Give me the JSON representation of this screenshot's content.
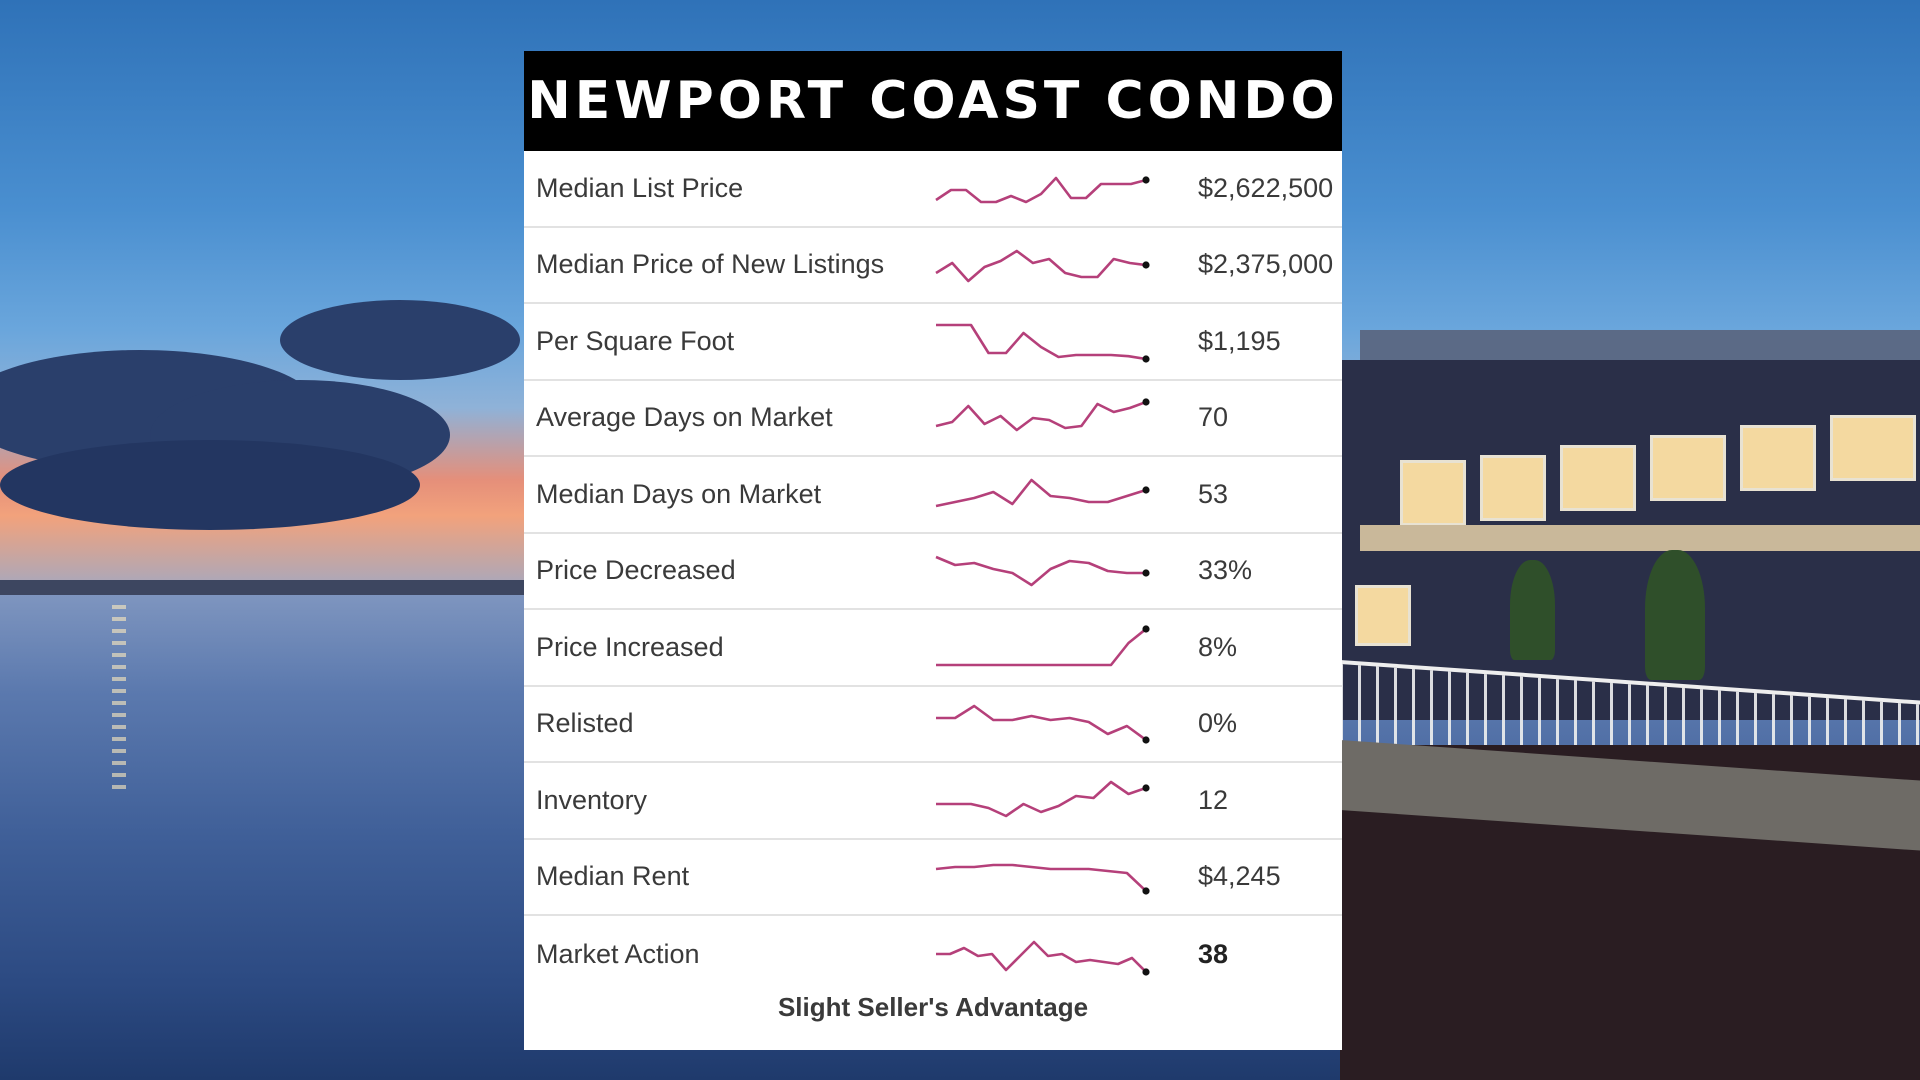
{
  "title": "NEWPORT COAST CONDO",
  "accent_color": "#b5407a",
  "rows": [
    {
      "label": "Median List Price",
      "value": "$2,622,500",
      "bold": false,
      "trend": [
        0.2,
        0.45,
        0.45,
        0.15,
        0.15,
        0.3,
        0.15,
        0.35,
        0.75,
        0.25,
        0.25,
        0.6,
        0.6,
        0.6,
        0.7
      ]
    },
    {
      "label": "Median Price of New Listings",
      "value": "$2,375,000",
      "bold": false,
      "trend": [
        0.3,
        0.55,
        0.1,
        0.45,
        0.6,
        0.85,
        0.55,
        0.65,
        0.3,
        0.2,
        0.2,
        0.65,
        0.55,
        0.5
      ]
    },
    {
      "label": "Per Square Foot",
      "value": "$1,195",
      "bold": false,
      "trend": [
        0.9,
        0.9,
        0.9,
        0.2,
        0.2,
        0.7,
        0.35,
        0.1,
        0.15,
        0.15,
        0.15,
        0.12,
        0.05
      ]
    },
    {
      "label": "Average Days on Market",
      "value": "70",
      "bold": false,
      "trend": [
        0.3,
        0.4,
        0.8,
        0.35,
        0.55,
        0.2,
        0.5,
        0.45,
        0.25,
        0.3,
        0.85,
        0.65,
        0.75,
        0.9
      ]
    },
    {
      "label": "Median Days on Market",
      "value": "53",
      "bold": false,
      "trend": [
        0.2,
        0.3,
        0.4,
        0.55,
        0.25,
        0.85,
        0.45,
        0.4,
        0.3,
        0.3,
        0.45,
        0.6
      ]
    },
    {
      "label": "Price Decreased",
      "value": "33%",
      "bold": false,
      "trend": [
        0.85,
        0.65,
        0.7,
        0.55,
        0.45,
        0.15,
        0.55,
        0.75,
        0.7,
        0.5,
        0.45,
        0.45
      ]
    },
    {
      "label": "Price Increased",
      "value": "8%",
      "bold": false,
      "trend": [
        0.05,
        0.05,
        0.05,
        0.05,
        0.05,
        0.05,
        0.05,
        0.05,
        0.05,
        0.05,
        0.05,
        0.6,
        0.95
      ]
    },
    {
      "label": "Relisted",
      "value": "0%",
      "bold": false,
      "trend": [
        0.65,
        0.65,
        0.95,
        0.6,
        0.6,
        0.7,
        0.6,
        0.65,
        0.55,
        0.25,
        0.45,
        0.1
      ]
    },
    {
      "label": "Inventory",
      "value": "12",
      "bold": false,
      "trend": [
        0.4,
        0.4,
        0.4,
        0.3,
        0.1,
        0.4,
        0.2,
        0.35,
        0.6,
        0.55,
        0.95,
        0.65,
        0.8
      ]
    },
    {
      "label": "Median Rent",
      "value": "$4,245",
      "bold": false,
      "trend": [
        0.7,
        0.75,
        0.75,
        0.8,
        0.8,
        0.75,
        0.7,
        0.7,
        0.7,
        0.65,
        0.6,
        0.15
      ]
    },
    {
      "label": "Market Action",
      "value": "38",
      "bold": true,
      "trend": [
        0.5,
        0.5,
        0.65,
        0.45,
        0.5,
        0.1,
        0.45,
        0.8,
        0.45,
        0.5,
        0.3,
        0.35,
        0.3,
        0.25,
        0.4,
        0.05
      ]
    }
  ],
  "footer": "Slight Seller's Advantage"
}
